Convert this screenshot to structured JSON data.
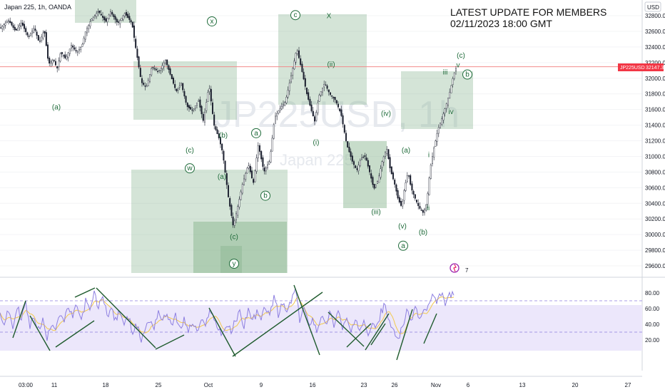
{
  "title": "Japan 225, 1h, OANDA",
  "watermark": {
    "symbol": "JP225USD, 1h",
    "name": "Japan 225"
  },
  "headline": {
    "line1": "LATEST UPDATE FOR MEMBERS",
    "line2": "02/11/2023 18:00 GMT"
  },
  "currency_badge": "USD",
  "price_badge": {
    "symbol": "JP225USD",
    "value": "32147.3"
  },
  "colors": {
    "candle": "#1b1f2e",
    "box": "#8fb996",
    "label": "#1f6b3a",
    "rsi": "#8d7fe0",
    "rsi_ma": "#f2c94c",
    "rsi_band": "#ece7fb",
    "price_line": "#f28b8b",
    "trend": "#1f5b2e",
    "badge": "#f23645"
  },
  "chart_data": [
    {
      "type": "candlestick",
      "series": "Japan 225 1h",
      "x_ticks": [
        "03:00",
        "11",
        "18",
        "25",
        "Oct",
        "9",
        "16",
        "23",
        "26",
        "Nov",
        "6",
        "13",
        "20",
        "27"
      ],
      "y_ticks": [
        32800,
        32600,
        32400,
        32200,
        32000,
        31800,
        31600,
        31400,
        31200,
        31000,
        30800,
        30600,
        30400,
        30200,
        30000,
        29800,
        29600
      ],
      "ylim": [
        29520,
        32900
      ],
      "current_price": 32147.3,
      "path": [
        [
          0,
          32640
        ],
        [
          12,
          32740
        ],
        [
          22,
          32600
        ],
        [
          30,
          32710
        ],
        [
          40,
          32520
        ],
        [
          48,
          32650
        ],
        [
          55,
          32450
        ],
        [
          62,
          32620
        ],
        [
          68,
          32180
        ],
        [
          75,
          32240
        ],
        [
          80,
          32120
        ],
        [
          85,
          32330
        ],
        [
          92,
          32250
        ],
        [
          100,
          32420
        ],
        [
          108,
          32330
        ],
        [
          115,
          32420
        ],
        [
          120,
          32600
        ],
        [
          128,
          32750
        ],
        [
          138,
          32860
        ],
        [
          148,
          32720
        ],
        [
          155,
          32850
        ],
        [
          165,
          32700
        ],
        [
          175,
          32830
        ],
        [
          185,
          32700
        ],
        [
          190,
          32400
        ],
        [
          198,
          31950
        ],
        [
          205,
          31880
        ],
        [
          213,
          32150
        ],
        [
          222,
          32080
        ],
        [
          232,
          32230
        ],
        [
          240,
          32010
        ],
        [
          247,
          31830
        ],
        [
          254,
          31930
        ],
        [
          262,
          31640
        ],
        [
          270,
          31580
        ],
        [
          278,
          31720
        ],
        [
          285,
          31450
        ],
        [
          293,
          31910
        ],
        [
          300,
          31400
        ],
        [
          307,
          31230
        ],
        [
          312,
          31050
        ],
        [
          320,
          30480
        ],
        [
          327,
          30100
        ],
        [
          333,
          30350
        ],
        [
          340,
          30650
        ],
        [
          348,
          30900
        ],
        [
          355,
          30650
        ],
        [
          362,
          31150
        ],
        [
          370,
          30800
        ],
        [
          378,
          30950
        ],
        [
          385,
          31500
        ],
        [
          393,
          31620
        ],
        [
          400,
          31700
        ],
        [
          408,
          32030
        ],
        [
          416,
          32380
        ],
        [
          423,
          32100
        ],
        [
          430,
          31800
        ],
        [
          436,
          31600
        ],
        [
          441,
          31450
        ],
        [
          447,
          31770
        ],
        [
          455,
          31940
        ],
        [
          462,
          31800
        ],
        [
          470,
          31720
        ],
        [
          478,
          31540
        ],
        [
          486,
          31150
        ],
        [
          494,
          30930
        ],
        [
          500,
          30820
        ],
        [
          506,
          30980
        ],
        [
          512,
          31000
        ],
        [
          518,
          30800
        ],
        [
          524,
          30580
        ],
        [
          530,
          30700
        ],
        [
          536,
          30950
        ],
        [
          542,
          31100
        ],
        [
          547,
          30830
        ],
        [
          553,
          30650
        ],
        [
          558,
          30450
        ],
        [
          563,
          30350
        ],
        [
          567,
          30600
        ],
        [
          572,
          30800
        ],
        [
          576,
          30600
        ],
        [
          581,
          30480
        ],
        [
          587,
          30350
        ],
        [
          593,
          30280
        ],
        [
          598,
          30400
        ],
        [
          603,
          30850
        ],
        [
          608,
          31100
        ],
        [
          614,
          31350
        ],
        [
          620,
          31500
        ],
        [
          626,
          31680
        ],
        [
          631,
          31850
        ],
        [
          636,
          32050
        ],
        [
          640,
          32150
        ]
      ]
    },
    {
      "type": "line",
      "series": "RSI",
      "y_ticks": [
        80,
        60,
        40,
        20
      ],
      "ylim": [
        14,
        88
      ],
      "bands": [
        70,
        30
      ],
      "path": [
        [
          0,
          55
        ],
        [
          6,
          40
        ],
        [
          12,
          58
        ],
        [
          18,
          35
        ],
        [
          24,
          62
        ],
        [
          30,
          48
        ],
        [
          36,
          67
        ],
        [
          42,
          36
        ],
        [
          48,
          50
        ],
        [
          54,
          33
        ],
        [
          60,
          45
        ],
        [
          66,
          20
        ],
        [
          72,
          42
        ],
        [
          78,
          37
        ],
        [
          84,
          55
        ],
        [
          90,
          44
        ],
        [
          96,
          62
        ],
        [
          102,
          48
        ],
        [
          108,
          66
        ],
        [
          114,
          43
        ],
        [
          120,
          70
        ],
        [
          126,
          56
        ],
        [
          132,
          80
        ],
        [
          138,
          60
        ],
        [
          144,
          78
        ],
        [
          150,
          52
        ],
        [
          156,
          60
        ],
        [
          162,
          44
        ],
        [
          168,
          58
        ],
        [
          174,
          40
        ],
        [
          180,
          48
        ],
        [
          186,
          32
        ],
        [
          192,
          38
        ],
        [
          198,
          20
        ],
        [
          204,
          36
        ],
        [
          210,
          45
        ],
        [
          216,
          37
        ],
        [
          222,
          58
        ],
        [
          228,
          43
        ],
        [
          234,
          55
        ],
        [
          240,
          40
        ],
        [
          246,
          50
        ],
        [
          252,
          33
        ],
        [
          258,
          46
        ],
        [
          264,
          32
        ],
        [
          270,
          42
        ],
        [
          276,
          30
        ],
        [
          282,
          44
        ],
        [
          288,
          36
        ],
        [
          294,
          62
        ],
        [
          300,
          45
        ],
        [
          306,
          35
        ],
        [
          312,
          28
        ],
        [
          318,
          40
        ],
        [
          324,
          30
        ],
        [
          330,
          45
        ],
        [
          336,
          55
        ],
        [
          342,
          38
        ],
        [
          348,
          60
        ],
        [
          354,
          44
        ],
        [
          360,
          55
        ],
        [
          366,
          45
        ],
        [
          372,
          64
        ],
        [
          378,
          48
        ],
        [
          384,
          78
        ],
        [
          390,
          52
        ],
        [
          396,
          66
        ],
        [
          402,
          55
        ],
        [
          408,
          70
        ],
        [
          414,
          85
        ],
        [
          420,
          45
        ],
        [
          426,
          62
        ],
        [
          432,
          40
        ],
        [
          438,
          48
        ],
        [
          444,
          32
        ],
        [
          450,
          52
        ],
        [
          456,
          38
        ],
        [
          462,
          55
        ],
        [
          468,
          40
        ],
        [
          474,
          58
        ],
        [
          480,
          36
        ],
        [
          486,
          46
        ],
        [
          492,
          30
        ],
        [
          498,
          42
        ],
        [
          504,
          34
        ],
        [
          510,
          48
        ],
        [
          516,
          30
        ],
        [
          522,
          45
        ],
        [
          528,
          35
        ],
        [
          534,
          56
        ],
        [
          540,
          65
        ],
        [
          546,
          40
        ],
        [
          552,
          30
        ],
        [
          558,
          22
        ],
        [
          564,
          38
        ],
        [
          570,
          55
        ],
        [
          576,
          45
        ],
        [
          582,
          62
        ],
        [
          588,
          47
        ],
        [
          594,
          56
        ],
        [
          600,
          62
        ],
        [
          606,
          75
        ],
        [
          612,
          66
        ],
        [
          618,
          80
        ],
        [
          624,
          67
        ],
        [
          630,
          76
        ],
        [
          636,
          82
        ]
      ]
    }
  ],
  "wave_labels": [
    {
      "text": "(a)",
      "x": 79,
      "y": 31600,
      "circled": false
    },
    {
      "text": "x",
      "x": 297,
      "y": 32700,
      "circled": true
    },
    {
      "text": "(b)",
      "x": 313,
      "y": 31240,
      "circled": false
    },
    {
      "text": "(c)",
      "x": 266,
      "y": 31050,
      "circled": false
    },
    {
      "text": "w",
      "x": 266,
      "y": 30820,
      "circled": true
    },
    {
      "text": "(a)",
      "x": 311,
      "y": 30710,
      "circled": false
    },
    {
      "text": "a",
      "x": 359,
      "y": 31270,
      "circled": true
    },
    {
      "text": "b",
      "x": 372,
      "y": 30470,
      "circled": true
    },
    {
      "text": "(c)",
      "x": 328,
      "y": 29940,
      "circled": false
    },
    {
      "text": "y",
      "x": 328,
      "y": 29600,
      "circled": true
    },
    {
      "text": "c",
      "x": 414,
      "y": 32780,
      "circled": true
    },
    {
      "text": "X",
      "x": 461,
      "y": 32770,
      "circled": false
    },
    {
      "text": "(ii)",
      "x": 464,
      "y": 32150,
      "circled": false
    },
    {
      "text": "(i)",
      "x": 443,
      "y": 31150,
      "circled": false
    },
    {
      "text": "(iv)",
      "x": 541,
      "y": 31520,
      "circled": false
    },
    {
      "text": "(iii)",
      "x": 527,
      "y": 30260,
      "circled": false
    },
    {
      "text": "(a)",
      "x": 569,
      "y": 31050,
      "circled": false
    },
    {
      "text": "(v)",
      "x": 564,
      "y": 30080,
      "circled": false
    },
    {
      "text": "(b)",
      "x": 593,
      "y": 30000,
      "circled": false
    },
    {
      "text": "a",
      "x": 565,
      "y": 29830,
      "circled": true
    },
    {
      "text": "ii",
      "x": 600,
      "y": 30310,
      "circled": false
    },
    {
      "text": "i",
      "x": 601,
      "y": 30990,
      "circled": false
    },
    {
      "text": "iii",
      "x": 624,
      "y": 32050,
      "circled": false
    },
    {
      "text": "iv",
      "x": 632,
      "y": 31540,
      "circled": false
    },
    {
      "text": "(c)",
      "x": 646,
      "y": 32260,
      "circled": false
    },
    {
      "text": "v",
      "x": 642,
      "y": 32140,
      "circled": false
    },
    {
      "text": "b",
      "x": 655,
      "y": 32020,
      "circled": true
    }
  ],
  "event_badge": {
    "number": "7"
  }
}
